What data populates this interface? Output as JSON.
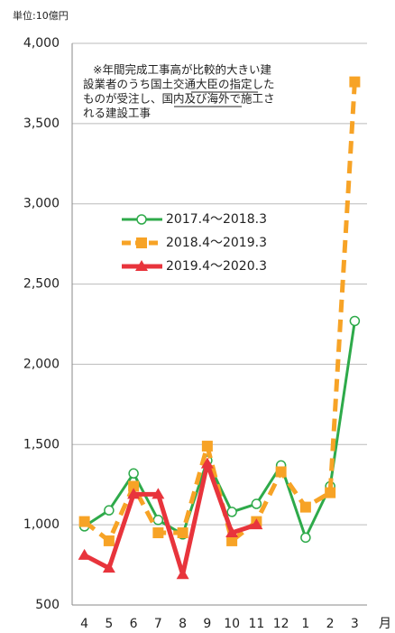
{
  "chart_data": {
    "type": "line",
    "unit_label": "単位:10億円",
    "x_unit": "月",
    "annotation": [
      "※年間完成工事高が比較的大きい建",
      "設業者のうち国土交通大臣の指定した",
      "ものが受注し、国内及び海外で施工さ",
      "れる建設工事"
    ],
    "categories": [
      "4",
      "5",
      "6",
      "7",
      "8",
      "9",
      "10",
      "11",
      "12",
      "1",
      "2",
      "3"
    ],
    "series": [
      {
        "name": "2017.4〜2018.3",
        "color": "#2eaa4a",
        "marker": "circle",
        "dash": false,
        "values": [
          990,
          1090,
          1320,
          1030,
          940,
          1400,
          1080,
          1130,
          1370,
          920,
          1240,
          2270
        ]
      },
      {
        "name": "2018.4〜2019.3",
        "color": "#f7a326",
        "marker": "square",
        "dash": true,
        "values": [
          1020,
          900,
          1240,
          950,
          950,
          1490,
          900,
          1020,
          1330,
          1110,
          1200,
          3760
        ]
      },
      {
        "name": "2019.4〜2020.3",
        "color": "#e8343c",
        "marker": "triangle",
        "dash": false,
        "values": [
          810,
          730,
          1190,
          1190,
          690,
          1380,
          950,
          1000,
          null,
          null,
          null,
          null
        ]
      }
    ],
    "ylim": [
      500,
      4000
    ],
    "yticks": [
      500,
      {
        "value": 1000,
        "label": "1,000"
      },
      {
        "value": 1500,
        "label": "1,500"
      },
      {
        "value": 2000,
        "label": "2,000"
      },
      {
        "value": 2500,
        "label": "2,500"
      },
      {
        "value": 3000,
        "label": "3,000"
      },
      {
        "value": 3500,
        "label": "3,500"
      },
      {
        "value": 4000,
        "label": "4,000"
      }
    ],
    "grid": true
  }
}
